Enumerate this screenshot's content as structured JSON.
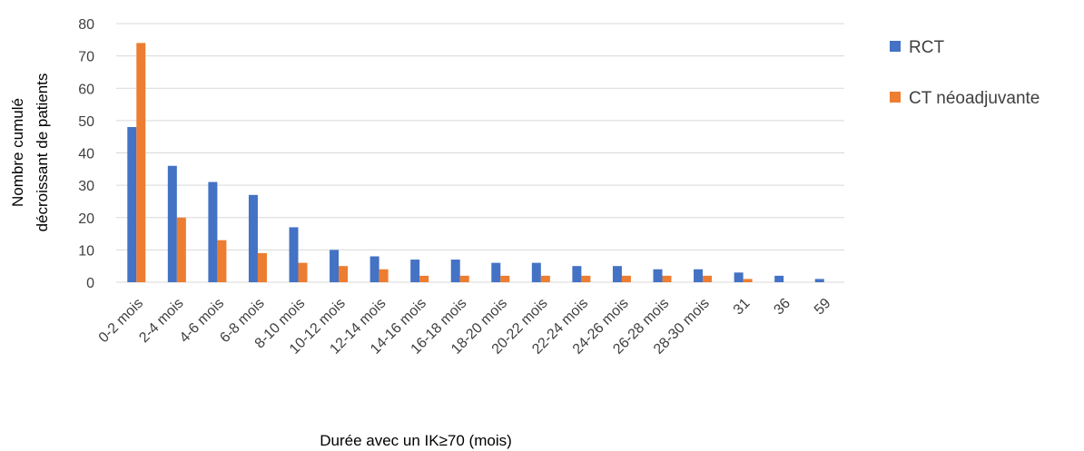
{
  "chart_data": {
    "type": "bar",
    "title": "",
    "xlabel": "Durée avec un IK≥70 (mois)",
    "ylabel_lines": [
      "Nombre cumulé",
      "décroissant de patients"
    ],
    "ylim": [
      0,
      80
    ],
    "yticks": [
      0,
      10,
      20,
      30,
      40,
      50,
      60,
      70,
      80
    ],
    "grid": true,
    "legend_position": "right",
    "categories": [
      "0-2 mois",
      "2-4 mois",
      "4-6 mois",
      "6-8 mois",
      "8-10 mois",
      "10-12 mois",
      "12-14 mois",
      "14-16 mois",
      "16-18 mois",
      "18-20 mois",
      "20-22 mois",
      "22-24 mois",
      "24-26 mois",
      "26-28 mois",
      "28-30 mois",
      "31",
      "36",
      "59"
    ],
    "series": [
      {
        "name": "RCT",
        "color": "#4472C4",
        "values": [
          48,
          36,
          31,
          27,
          17,
          10,
          8,
          7,
          7,
          6,
          6,
          5,
          5,
          4,
          4,
          3,
          2,
          1
        ]
      },
      {
        "name": "CT néoadjuvante",
        "color": "#ED7D31",
        "values": [
          74,
          20,
          13,
          9,
          6,
          5,
          4,
          2,
          2,
          2,
          2,
          2,
          2,
          2,
          2,
          1,
          0,
          0
        ]
      }
    ]
  }
}
